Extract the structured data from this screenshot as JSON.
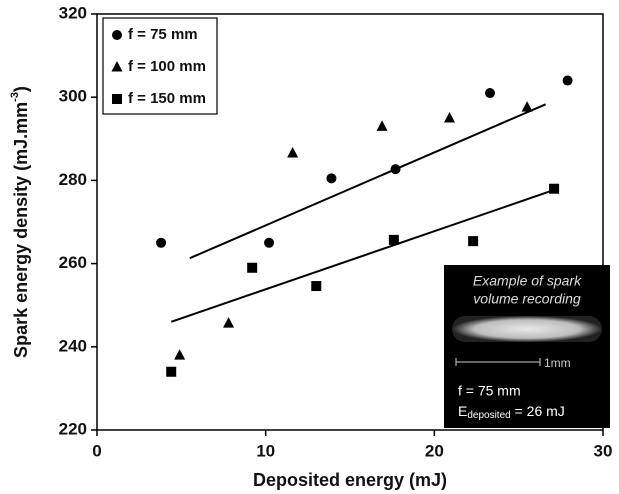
{
  "chart_data": {
    "type": "scatter",
    "x_label": "Deposited energy (mJ)",
    "y_label": [
      "Spark energy density (mJ.mm",
      "-3",
      ")"
    ],
    "xlim": [
      0,
      30
    ],
    "xticks": [
      0,
      10,
      20,
      30
    ],
    "ylim": [
      220,
      320
    ],
    "yticks": [
      220,
      240,
      260,
      280,
      300,
      320
    ],
    "legend": "upper left",
    "series": [
      {
        "name": "f = 75 mm",
        "marker": "circle",
        "color": "#000000",
        "x": [
          3.8,
          10.2,
          13.9,
          17.7,
          23.3,
          27.9
        ],
        "values": [
          265,
          265,
          280.5,
          282.7,
          301,
          304
        ]
      },
      {
        "name": "f = 100 mm",
        "marker": "triangle",
        "color": "#000000",
        "x": [
          4.9,
          7.8,
          11.6,
          16.9,
          20.9,
          25.5
        ],
        "values": [
          238,
          245.7,
          286.6,
          293,
          295,
          297.6
        ]
      },
      {
        "name": "f = 150 mm",
        "marker": "square",
        "color": "#000000",
        "x": [
          4.4,
          9.2,
          13,
          17.6,
          22.3,
          27.1
        ],
        "values": [
          234,
          259,
          254.6,
          265.7,
          265.4,
          278
        ]
      }
    ],
    "trend_lines": [
      {
        "x": [
          5.5,
          26.6
        ],
        "values": [
          261.3,
          298.3
        ]
      },
      {
        "x": [
          4.4,
          27.1
        ],
        "values": [
          246,
          277.7
        ]
      }
    ],
    "inset": {
      "caption": [
        "Example of spark",
        "volume recording"
      ],
      "scale": "1mm",
      "focal": "f = 75 mm",
      "energy_symbol": "E",
      "energy_subscript": "deposited",
      "energy_value": " = 26 mJ"
    }
  }
}
